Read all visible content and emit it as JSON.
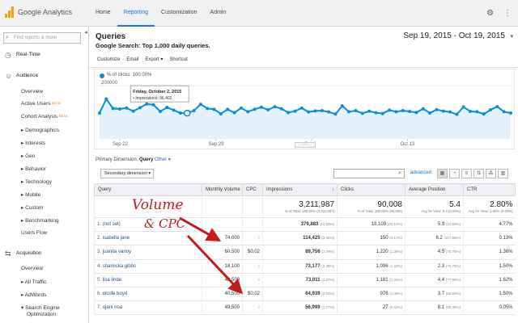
{
  "app": {
    "name": "Google Analytics"
  },
  "nav": [
    "Home",
    "Reporting",
    "Customization",
    "Admin"
  ],
  "nav_active": 1,
  "sidebar": {
    "search_placeholder": "Find reports & more",
    "realtime": "Real-Time",
    "audience": "Audience",
    "overview": "Overview",
    "active_users": "Active Users",
    "cohort": "Cohort Analysis",
    "beta": "BETA",
    "demographics": "Demographics",
    "interests": "Interests",
    "geo": "Geo",
    "behavior": "Behavior",
    "technology": "Technology",
    "mobile": "Mobile",
    "custom": "Custom",
    "benchmarking": "Benchmarking",
    "users_flow": "Users Flow",
    "acquisition": "Acquisition",
    "acq_overview": "Overview",
    "all_traffic": "All Traffic",
    "adwords": "AdWords",
    "seo": "Search Engine",
    "seo2": "Optimization"
  },
  "header": {
    "title": "Queries",
    "subtitle": "Google Search: Top 1,000 daily queries.",
    "daterange": "Sep 19, 2015 - Oct 19, 2015"
  },
  "toolbar": [
    "Customize",
    "Email",
    "Export ▾",
    "Shortcut"
  ],
  "chart_data": {
    "type": "line",
    "legend": "% of clicks: 100.00%",
    "y_ticks": [
      "200000",
      "100000"
    ],
    "ylim": [
      0,
      200000
    ],
    "x_ticks": [
      "Sep 22",
      "Sep 29",
      "Oct 6",
      "Oct 13"
    ],
    "tooltip": {
      "title": "Friday, October 2, 2015",
      "label": "• Impressions: 96,402",
      "index": 13
    },
    "series": [
      {
        "name": "Impressions",
        "values": [
          97000,
          150000,
          114000,
          112000,
          116000,
          104000,
          117000,
          131000,
          128000,
          103000,
          118000,
          108000,
          97000,
          96402,
          106000,
          130000,
          114000,
          111000,
          94000,
          111000,
          98000,
          116000,
          102000,
          111000,
          119000,
          109000,
          121000,
          113000,
          99000,
          104000,
          116000,
          101000,
          105000,
          106000,
          101000,
          93000,
          124000,
          102000,
          106000,
          96000,
          104000,
          98000,
          95000,
          108000,
          102000,
          106000,
          103000,
          99000,
          113000,
          97000,
          110000,
          104000,
          101000,
          92000,
          120000,
          103000,
          102000,
          93000,
          109000,
          121000,
          102000,
          97000
        ]
      }
    ]
  },
  "dimension": {
    "label": "Primary Dimension:",
    "value": "Query",
    "other": "Other ▾"
  },
  "secondary": "Secondary dimension ▾",
  "advanced": "advanced",
  "table": {
    "headers": [
      "Query",
      "Monthly Volume",
      "CPC",
      "Impressions",
      "Clicks",
      "Average Position",
      "CTR"
    ],
    "sort_arrow": "↓",
    "totals": {
      "impressions": "3,211,987",
      "impressions_sub": "% of Total: 100.00% (3,211,987)",
      "clicks": "90,008",
      "clicks_sub": "% of Total: 100.00% (90,008)",
      "position": "5.4",
      "position_sub": "Avg for View: 5.4 (0.00%)",
      "ctr": "2.80%",
      "ctr_sub": "Avg for View: 2.80% (0.00%)"
    },
    "rows": [
      {
        "n": "1.",
        "query": "(not set)",
        "volume": "",
        "cpc": "",
        "imp": "379,883",
        "imp_pct": "(11.83%)",
        "clicks": "18,109",
        "clicks_pct": "(20.12%)",
        "pos": "5.9",
        "pos_pct": "(11.50%)",
        "ctr": "4.77%"
      },
      {
        "n": "2.",
        "query": "isabella jane",
        "volume": "74,000",
        "cpc": "-",
        "imp": "114,425",
        "imp_pct": "(3.56%)",
        "clicks": "150",
        "clicks_pct": "(0.17%)",
        "pos": "6.2",
        "pos_pct": "(117.65%)",
        "ctr": "0.13%"
      },
      {
        "n": "3.",
        "query": "juanita vanoy",
        "volume": "60,500",
        "cpc": "$0.02",
        "imp": "89,756",
        "imp_pct": "(2.79%)",
        "clicks": "1,220",
        "clicks_pct": "(1.36%)",
        "pos": "4.5",
        "pos_pct": "(78.75%)",
        "ctr": "1.36%"
      },
      {
        "n": "4.",
        "query": "shamicka gibbs",
        "volume": "18,100",
        "cpc": "-",
        "imp": "73,177",
        "imp_pct": "(2.28%)",
        "clicks": "1,096",
        "clicks_pct": "(1.22%)",
        "pos": "2.3",
        "pos_pct": "(76.75%)",
        "ctr": "1.50%"
      },
      {
        "n": "5.",
        "query": "lisa linde",
        "volume": "49,500",
        "cpc": "-",
        "imp": "73,011",
        "imp_pct": "(2.27%)",
        "clicks": "1,181",
        "clicks_pct": "(1.31%)",
        "pos": "4.4",
        "pos_pct": "(77.89%)",
        "ctr": "1.62%"
      },
      {
        "n": "6.",
        "query": "nicole boyd",
        "volume": "40,500",
        "cpc": "$0.02",
        "imp": "64,939",
        "imp_pct": "(2.02%)",
        "clicks": "976",
        "clicks_pct": "(1.08%)",
        "pos": "3.7",
        "pos_pct": "(60.60%)",
        "ctr": "1.50%"
      },
      {
        "n": "7.",
        "query": "ojani noa",
        "volume": "49,500",
        "cpc": "-",
        "imp": "56,999",
        "imp_pct": "(1.77%)",
        "clicks": "27",
        "clicks_pct": "(0.03%)",
        "pos": "8.1",
        "pos_pct": "(50.48%)",
        "ctr": "0.05%"
      }
    ]
  },
  "annotation": {
    "line1": "Volume",
    "line2": "& CPC",
    "color": "#c21d1d"
  },
  "colors": {
    "accent": "#1a73c7",
    "line": "#0b8ed6",
    "orange": "#f4a116"
  }
}
